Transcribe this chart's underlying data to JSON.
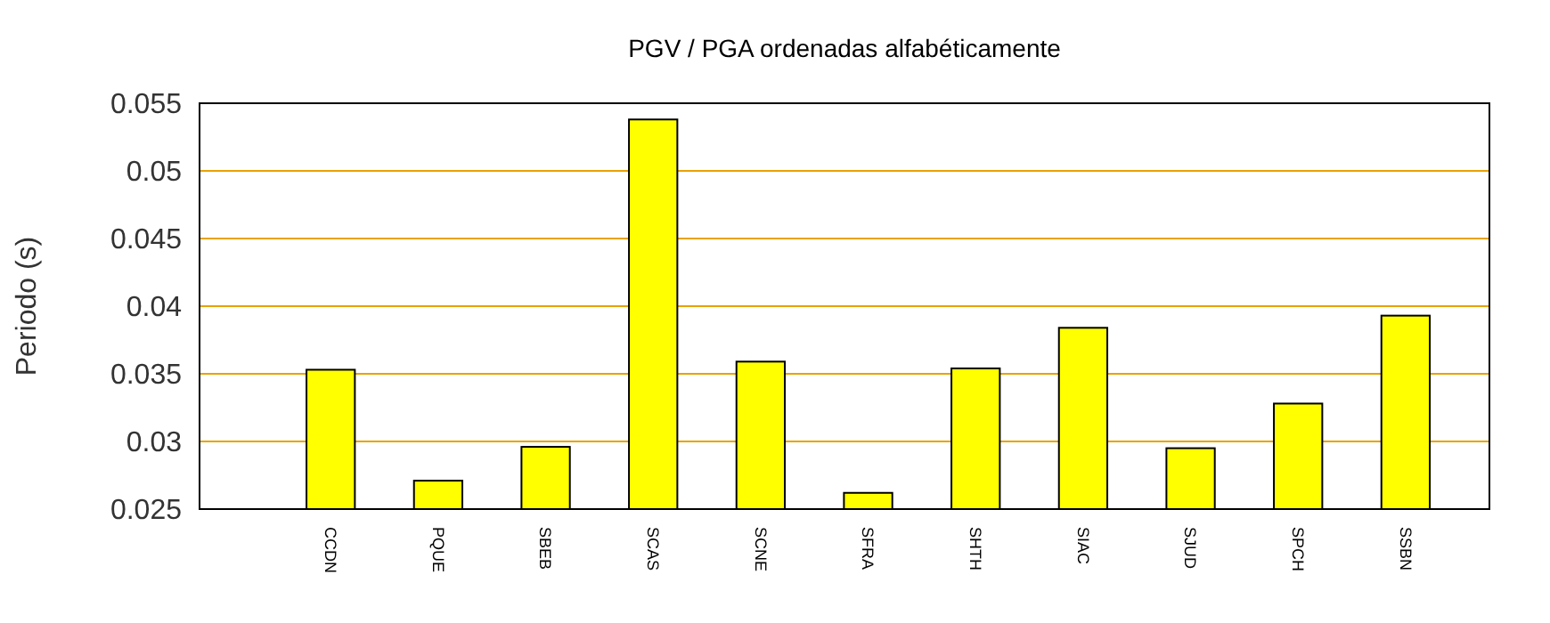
{
  "chart_data": {
    "type": "bar",
    "title": "PGV / PGA ordenadas alfabéticamente",
    "ylabel": "Periodo (s)",
    "categories": [
      "CCDN",
      "PQUE",
      "SBEB",
      "SCAS",
      "SCNE",
      "SFRA",
      "SHTH",
      "SIAC",
      "SJUD",
      "SPCH",
      "SSBN"
    ],
    "values": [
      0.0353,
      0.0271,
      0.0296,
      0.0538,
      0.0359,
      0.0262,
      0.0354,
      0.0384,
      0.0295,
      0.0328,
      0.0393
    ],
    "color": "#ffff00",
    "ylim": [
      0.025,
      0.055
    ],
    "yticks": [
      0.025,
      0.03,
      0.035,
      0.04,
      0.045,
      0.05,
      0.055
    ],
    "grid": "y"
  }
}
